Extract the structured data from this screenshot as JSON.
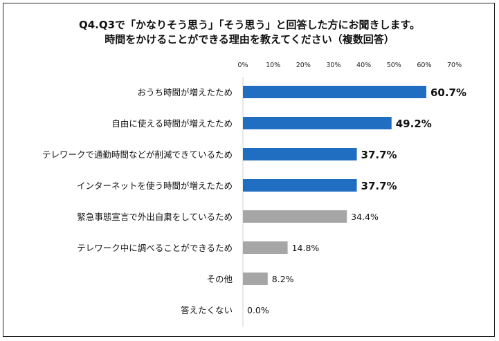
{
  "title_line1": "Q4.Q3で「かなりそう思う」「そう思う」と回答した方にお聞きします。",
  "title_line2": "時間をかけることができる理由を教えてください（複数回答）",
  "chart_data": {
    "type": "bar",
    "orientation": "horizontal",
    "categories": [
      "おうち時間が増えたため",
      "自由に使える時間が増えたため",
      "テレワークで通勤時間などが削減できているため",
      "インターネットを使う時間が増えたため",
      "緊急事態宣言で外出自粛をしているため",
      "テレワーク中に調べることができるため",
      "その他",
      "答えたくない"
    ],
    "values": [
      60.7,
      49.2,
      37.7,
      37.7,
      34.4,
      14.8,
      8.2,
      0.0
    ],
    "value_labels": [
      "60.7%",
      "49.2%",
      "37.7%",
      "37.7%",
      "34.4%",
      "14.8%",
      "8.2%",
      "0.0%"
    ],
    "highlight": [
      true,
      true,
      true,
      true,
      false,
      false,
      false,
      false
    ],
    "xlim": [
      0,
      70
    ],
    "xticks": [
      "0%",
      "10%",
      "20%",
      "30%",
      "40%",
      "50%",
      "60%",
      "70%"
    ],
    "tick_position": "top",
    "colors": {
      "highlight": "#1F6EC1",
      "normal": "#A6A6A6"
    }
  }
}
